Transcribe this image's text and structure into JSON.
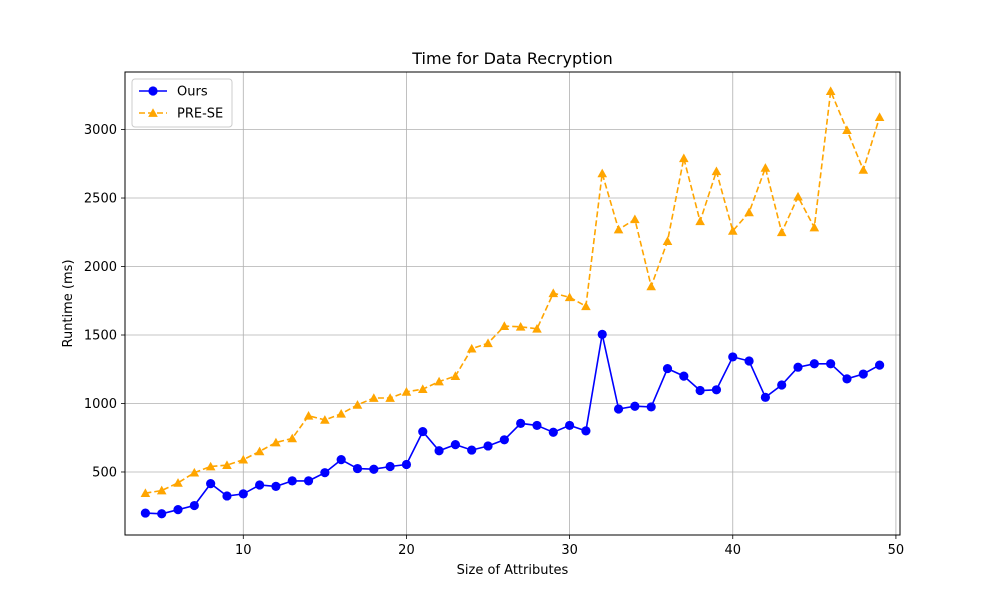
{
  "chart_data": {
    "type": "line",
    "title": "Time for Data Recryption",
    "xlabel": "Size of Attributes",
    "ylabel": "Runtime (ms)",
    "xlim": [
      2.75,
      50.25
    ],
    "ylim": [
      40,
      3420
    ],
    "xticks": [
      10,
      20,
      30,
      40,
      50
    ],
    "yticks": [
      500,
      1000,
      1500,
      2000,
      2500,
      3000
    ],
    "grid": true,
    "legend_position": "top-left",
    "x": [
      4,
      5,
      6,
      7,
      8,
      9,
      10,
      11,
      12,
      13,
      14,
      15,
      16,
      17,
      18,
      19,
      20,
      21,
      22,
      23,
      24,
      25,
      26,
      27,
      28,
      29,
      30,
      31,
      32,
      33,
      34,
      35,
      36,
      37,
      38,
      39,
      40,
      41,
      42,
      43,
      44,
      45,
      46,
      47,
      48,
      49
    ],
    "series": [
      {
        "name": "Ours",
        "color": "#0000ff",
        "marker": "circle",
        "linestyle": "solid",
        "values": [
          200,
          195,
          225,
          255,
          415,
          325,
          340,
          405,
          395,
          435,
          435,
          495,
          590,
          525,
          520,
          540,
          555,
          795,
          655,
          700,
          660,
          690,
          735,
          855,
          840,
          790,
          840,
          800,
          1505,
          960,
          980,
          975,
          1255,
          1200,
          1095,
          1100,
          1340,
          1310,
          1045,
          1135,
          1265,
          1290,
          1290,
          1180,
          1215,
          1280
        ]
      },
      {
        "name": "PRE-SE",
        "color": "#ffa500",
        "marker": "triangle",
        "linestyle": "dashed",
        "values": [
          345,
          365,
          420,
          495,
          540,
          550,
          590,
          650,
          715,
          745,
          910,
          880,
          925,
          990,
          1040,
          1040,
          1085,
          1105,
          1160,
          1200,
          1400,
          1440,
          1565,
          1560,
          1545,
          1805,
          1775,
          1710,
          2680,
          2270,
          2345,
          1855,
          2185,
          2790,
          2330,
          2695,
          2260,
          2395,
          2720,
          2250,
          2510,
          2285,
          3280,
          2995,
          2705,
          3090
        ]
      }
    ]
  }
}
